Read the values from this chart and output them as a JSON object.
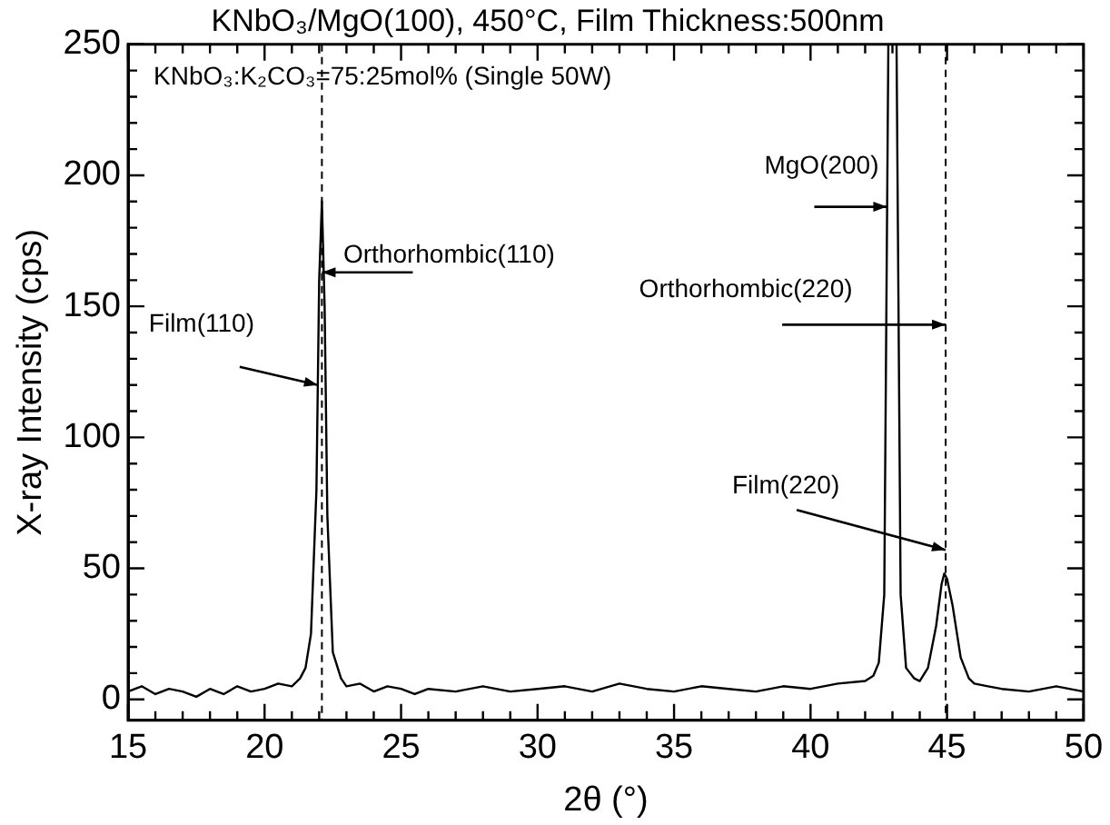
{
  "chart_data": {
    "type": "line",
    "title": "KNbO₃/MgO(100), 450°C, Film Thickness:500nm",
    "subtitle": "KNbO₃:K₂CO₃=75:25mol% (Single 50W)",
    "xlabel": "2θ (°)",
    "ylabel": "X-ray Intensity (cps)",
    "xlim": [
      15,
      50
    ],
    "ylim": [
      -8,
      250
    ],
    "xticks": [
      15,
      {
        "value": 16,
        "label": null
      },
      {
        "value": 17,
        "label": null
      },
      {
        "value": 18,
        "label": null
      },
      {
        "value": 19,
        "label": null
      },
      20,
      {
        "value": 21,
        "label": null
      },
      {
        "value": 22,
        "label": null
      },
      {
        "value": 23,
        "label": null
      },
      {
        "value": 24,
        "label": null
      },
      25,
      {
        "value": 26,
        "label": null
      },
      {
        "value": 27,
        "label": null
      },
      {
        "value": 28,
        "label": null
      },
      {
        "value": 29,
        "label": null
      },
      30,
      {
        "value": 31,
        "label": null
      },
      {
        "value": 32,
        "label": null
      },
      {
        "value": 33,
        "label": null
      },
      {
        "value": 34,
        "label": null
      },
      35,
      {
        "value": 36,
        "label": null
      },
      {
        "value": 37,
        "label": null
      },
      {
        "value": 38,
        "label": null
      },
      {
        "value": 39,
        "label": null
      },
      40,
      {
        "value": 41,
        "label": null
      },
      {
        "value": 42,
        "label": null
      },
      {
        "value": 43,
        "label": null
      },
      {
        "value": 44,
        "label": null
      },
      45,
      {
        "value": 46,
        "label": null
      },
      {
        "value": 47,
        "label": null
      },
      {
        "value": 48,
        "label": null
      },
      {
        "value": 49,
        "label": null
      },
      50
    ],
    "yticks": [
      0,
      {
        "value": 10,
        "label": null
      },
      {
        "value": 20,
        "label": null
      },
      {
        "value": 30,
        "label": null
      },
      {
        "value": 40,
        "label": null
      },
      50,
      {
        "value": 60,
        "label": null
      },
      {
        "value": 70,
        "label": null
      },
      {
        "value": 80,
        "label": null
      },
      {
        "value": 90,
        "label": null
      },
      100,
      {
        "value": 110,
        "label": null
      },
      {
        "value": 120,
        "label": null
      },
      {
        "value": 130,
        "label": null
      },
      {
        "value": 140,
        "label": null
      },
      150,
      {
        "value": 160,
        "label": null
      },
      {
        "value": 170,
        "label": null
      },
      {
        "value": 180,
        "label": null
      },
      {
        "value": 190,
        "label": null
      },
      200,
      {
        "value": 210,
        "label": null
      },
      {
        "value": 220,
        "label": null
      },
      {
        "value": 230,
        "label": null
      },
      {
        "value": 240,
        "label": null
      },
      250
    ],
    "grid": false,
    "legend": false,
    "marker": "none",
    "line_style": "solid",
    "series": [
      {
        "color": "#000000",
        "x": [
          15,
          15.5,
          16,
          16.5,
          17,
          17.5,
          18,
          18.5,
          19,
          19.5,
          20,
          20.5,
          21,
          21.3,
          21.5,
          21.7,
          21.9,
          22.0,
          22.1,
          22.2,
          22.3,
          22.5,
          22.8,
          23,
          23.5,
          24,
          24.5,
          25,
          25.5,
          26,
          27,
          28,
          29,
          30,
          31,
          32,
          33,
          34,
          35,
          36,
          37,
          38,
          39,
          40,
          41,
          42,
          42.3,
          42.5,
          42.7,
          42.85,
          43.15,
          43.3,
          43.5,
          43.8,
          44,
          44.3,
          44.6,
          44.8,
          44.9,
          45.0,
          45.2,
          45.5,
          45.8,
          46,
          46.5,
          47,
          48,
          49,
          50
        ],
        "values": [
          3,
          5,
          2,
          4,
          3,
          1,
          4,
          2,
          5,
          3,
          4,
          6,
          5,
          8,
          12,
          25,
          80,
          160,
          190,
          150,
          70,
          18,
          8,
          5,
          6,
          3,
          5,
          4,
          2,
          4,
          3,
          5,
          3,
          4,
          5,
          3,
          6,
          4,
          3,
          5,
          4,
          3,
          5,
          4,
          6,
          7,
          9,
          14,
          40,
          250,
          250,
          40,
          12,
          8,
          7,
          12,
          28,
          44,
          48,
          46,
          36,
          16,
          8,
          6,
          5,
          4,
          3,
          5,
          3
        ]
      }
    ],
    "ref_lines": [
      {
        "axis": "x",
        "value": 22.1,
        "line_style": "dashed"
      },
      {
        "axis": "x",
        "value": 44.95,
        "line_style": "dashed"
      }
    ],
    "annotations": [
      {
        "text": "Film(110)",
        "x": 21.95,
        "y": 120
      },
      {
        "text": "Orthorhombic(110)",
        "x": 22.1,
        "y": 163
      },
      {
        "text": "MgO(200)",
        "x": 42.8,
        "y": 188
      },
      {
        "text": "Orthorhombic(220)",
        "x": 44.95,
        "y": 143
      },
      {
        "text": "Film(220)",
        "x": 44.95,
        "y": 57
      }
    ]
  }
}
